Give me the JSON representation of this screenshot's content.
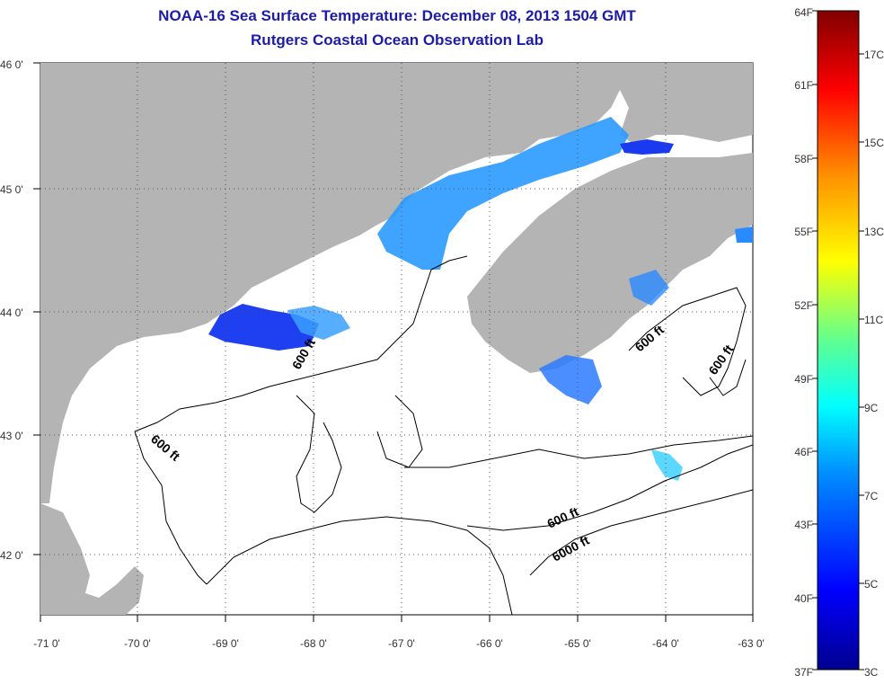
{
  "title": "NOAA-16 Sea Surface Temperature:  December 08, 2013 1504 GMT",
  "subtitle": "Rutgers Coastal Ocean Observation Lab",
  "map": {
    "lon_labels": [
      "-71 0'",
      "-70 0'",
      "-69 0'",
      "-68 0'",
      "-67 0'",
      "-66 0'",
      "-65 0'",
      "-64 0'",
      "-63 0'"
    ],
    "lat_labels": [
      "46 0'",
      "45 0'",
      "44 0'",
      "43 0'",
      "42 0'"
    ],
    "contour_labels": [
      "600 ft",
      "600 ft",
      "600 ft",
      "600 ft",
      "600 ft",
      "6000 ft"
    ],
    "colors": {
      "land": "#b4b4b4",
      "water": "#ffffff"
    }
  },
  "colorbar": {
    "fahrenheit": [
      "64F",
      "61F",
      "58F",
      "55F",
      "52F",
      "49F",
      "46F",
      "43F",
      "40F",
      "37F"
    ],
    "celsius": [
      "17C",
      "15C",
      "13C",
      "11C",
      "9C",
      "7C",
      "5C",
      "3C"
    ]
  }
}
